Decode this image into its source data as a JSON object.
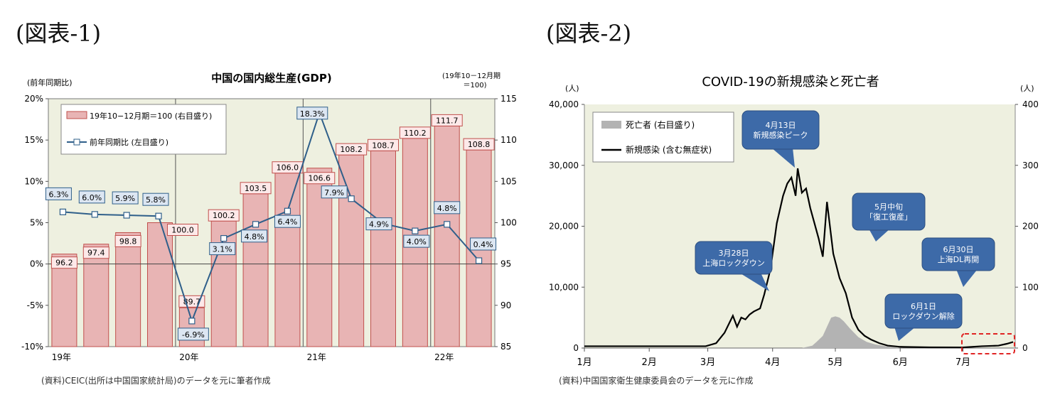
{
  "figure1": {
    "heading": "(図表-1)",
    "chart_data": {
      "type": "bar",
      "title": "中国の国内総生産(GDP)",
      "left_axis_label": "(前年同期比)",
      "right_axis_label_1": "(19年10－12月期",
      "right_axis_label_2": "＝100)",
      "left_axis": {
        "ylim": [
          -10,
          20
        ],
        "ticks": [
          "-10%",
          "-5%",
          "0%",
          "5%",
          "10%",
          "15%",
          "20%"
        ],
        "tick_values": [
          -10,
          -5,
          0,
          5,
          10,
          15,
          20
        ]
      },
      "right_axis": {
        "ylim": [
          85,
          115
        ],
        "ticks": [
          "85",
          "90",
          "95",
          "100",
          "105",
          "110",
          "115"
        ],
        "tick_values": [
          85,
          90,
          95,
          100,
          105,
          110,
          115
        ]
      },
      "x_tick_labels": [
        "19年",
        "20年",
        "21年",
        "22年"
      ],
      "x_tick_quarter_index": [
        0,
        4,
        8,
        12
      ],
      "quarter_count": 14,
      "series": [
        {
          "name": "19年10−12月期＝100 (右目盛り)",
          "axis": "right",
          "mark": "bar",
          "values": [
            96.2,
            97.4,
            98.8,
            100.0,
            89.7,
            100.2,
            103.5,
            106.0,
            106.6,
            108.2,
            108.7,
            110.2,
            111.7,
            108.8
          ],
          "labels": [
            "96.2",
            "97.4",
            "98.8",
            "100.0",
            "89.7",
            "100.2",
            "103.5",
            "106.0",
            "106.6",
            "108.2",
            "108.7",
            "110.2",
            "111.7",
            "108.8"
          ]
        },
        {
          "name": "前年同期比 (左目盛り)",
          "axis": "left",
          "mark": "line",
          "values": [
            6.3,
            6.0,
            5.9,
            5.8,
            -6.9,
            3.1,
            4.8,
            6.4,
            18.3,
            7.9,
            4.9,
            4.0,
            4.8,
            0.4
          ],
          "labels": [
            "6.3%",
            "6.0%",
            "5.9%",
            "5.8%",
            "-6.9%",
            "3.1%",
            "4.8%",
            "6.4%",
            "18.3%",
            "7.9%",
            "4.9%",
            "4.0%",
            "4.8%",
            "0.4%"
          ]
        }
      ],
      "legend_position": "top-left",
      "grid": false,
      "colors": {
        "bar_fill": "#e8b4b4",
        "bar_stroke": "#c0504d",
        "line": "#2f5f8a",
        "plot_bg": "#eef0e0",
        "label_bg": "#dce6f2",
        "bar_label_bg": "#fde9e9"
      }
    },
    "source": "(資料)CEIC(出所は中国国家統計局)のデータを元に筆者作成"
  },
  "figure2": {
    "heading": "(図表-2)",
    "chart_data": {
      "type": "area",
      "title": "COVID-19の新規感染と死亡者",
      "left_unit": "(人)",
      "right_unit": "(人)",
      "left_axis": {
        "ylim": [
          0,
          40000
        ],
        "ticks": [
          "0",
          "10,000",
          "20,000",
          "30,000",
          "40,000"
        ],
        "tick_values": [
          0,
          10000,
          20000,
          30000,
          40000
        ]
      },
      "right_axis": {
        "ylim": [
          0,
          400
        ],
        "ticks": [
          "0",
          "100",
          "200",
          "300",
          "400"
        ],
        "tick_values": [
          0,
          100,
          200,
          300,
          400
        ]
      },
      "x_axis": {
        "xlim": [
          "2022-01-01",
          "2022-07-26"
        ],
        "ticks": [
          "1月",
          "2月",
          "3月",
          "4月",
          "5月",
          "6月",
          "7月"
        ],
        "tick_dates": [
          "2022-01-01",
          "2022-02-01",
          "2022-03-01",
          "2022-04-01",
          "2022-05-01",
          "2022-06-01",
          "2022-07-01"
        ]
      },
      "series": [
        {
          "name": "死亡者 (右目盛り)",
          "axis": "right",
          "mark": "area",
          "x": [
            "2022-01-01",
            "2022-04-15",
            "2022-04-20",
            "2022-04-22",
            "2022-04-25",
            "2022-04-27",
            "2022-04-29",
            "2022-05-01",
            "2022-05-03",
            "2022-05-05",
            "2022-05-08",
            "2022-05-12",
            "2022-05-16",
            "2022-05-20",
            "2022-05-25",
            "2022-06-01",
            "2022-07-26"
          ],
          "y": [
            0,
            0,
            4,
            10,
            20,
            35,
            50,
            52,
            50,
            44,
            32,
            18,
            10,
            6,
            3,
            0,
            0
          ]
        },
        {
          "name": "新規感染 (含む無症状)",
          "axis": "left",
          "mark": "line",
          "x": [
            "2022-01-01",
            "2022-02-28",
            "2022-03-05",
            "2022-03-09",
            "2022-03-13",
            "2022-03-15",
            "2022-03-17",
            "2022-03-19",
            "2022-03-21",
            "2022-03-23",
            "2022-03-26",
            "2022-03-28",
            "2022-03-31",
            "2022-04-03",
            "2022-04-06",
            "2022-04-08",
            "2022-04-10",
            "2022-04-12",
            "2022-04-13",
            "2022-04-15",
            "2022-04-17",
            "2022-04-19",
            "2022-04-21",
            "2022-04-23",
            "2022-04-25",
            "2022-04-27",
            "2022-04-30",
            "2022-05-03",
            "2022-05-06",
            "2022-05-09",
            "2022-05-12",
            "2022-05-15",
            "2022-05-18",
            "2022-05-22",
            "2022-05-26",
            "2022-06-01",
            "2022-06-15",
            "2022-07-01",
            "2022-07-10",
            "2022-07-18",
            "2022-07-22",
            "2022-07-25"
          ],
          "y": [
            300,
            300,
            800,
            2500,
            5300,
            3500,
            5000,
            4700,
            5500,
            6000,
            6500,
            8800,
            13000,
            20500,
            25000,
            27000,
            28000,
            25000,
            29500,
            25500,
            26200,
            23000,
            20500,
            18000,
            15000,
            24000,
            15500,
            11500,
            9000,
            5000,
            3000,
            2000,
            1400,
            800,
            400,
            200,
            120,
            100,
            300,
            400,
            700,
            1000
          ]
        }
      ],
      "annotations": [
        {
          "id": "peak",
          "lines": [
            "4月13日",
            "新規感染ピーク"
          ]
        },
        {
          "id": "lockdown",
          "lines": [
            "3月28日",
            "上海ロックダウン"
          ]
        },
        {
          "id": "resume",
          "lines": [
            "5月中旬",
            "「復工復産」"
          ]
        },
        {
          "id": "lifted",
          "lines": [
            "6月1日",
            "ロックダウン解除"
          ]
        },
        {
          "id": "dl",
          "lines": [
            "6月30日",
            "上海DL再開"
          ]
        }
      ],
      "legend_position": "top-left",
      "grid": false,
      "colors": {
        "line": "#000000",
        "area": "#b3b3b3",
        "plot_bg": "#eef0e0",
        "callout": "#3d6aa8",
        "callout_text": "#ffffff",
        "highlight": "#e02424"
      }
    },
    "source": "(資料)中国国家衛生健康委員会のデータを元に作成"
  }
}
